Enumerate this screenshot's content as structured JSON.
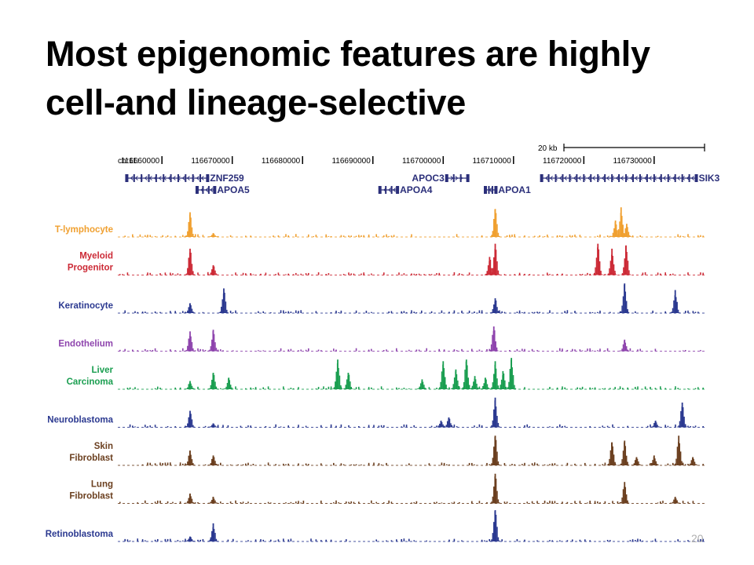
{
  "slide": {
    "title_line1": "Most epigenomic features are highly",
    "title_line2": "cell-and lineage-selective",
    "page_number": "20"
  },
  "chart_data": {
    "type": "area",
    "title": "",
    "chromosome_label": "chr11:",
    "region": {
      "start": 116653500,
      "end": 116737500
    },
    "ruler": {
      "ticks": [
        {
          "pos": 116660000,
          "label": "116660000"
        },
        {
          "pos": 116670000,
          "label": "116670000"
        },
        {
          "pos": 116680000,
          "label": "116680000"
        },
        {
          "pos": 116690000,
          "label": "116690000"
        },
        {
          "pos": 116700000,
          "label": "116700000"
        },
        {
          "pos": 116710000,
          "label": "116710000"
        },
        {
          "pos": 116720000,
          "label": "116720000"
        },
        {
          "pos": 116730000,
          "label": "116730000"
        }
      ],
      "scale_bar_label": "20 kb",
      "scale_bar_length_bp": 20000
    },
    "genes": [
      {
        "name": "ZNF259",
        "start": 116655000,
        "end": 116666500,
        "strand": "-",
        "row": 1,
        "label_side": "right"
      },
      {
        "name": "APOA5",
        "start": 116665000,
        "end": 116667500,
        "strand": "-",
        "row": 2,
        "label_side": "right"
      },
      {
        "name": "APOC3",
        "start": 116700500,
        "end": 116703500,
        "strand": "+",
        "row": 1,
        "label_side": "left"
      },
      {
        "name": "APOA4",
        "start": 116691000,
        "end": 116693500,
        "strand": "-",
        "row": 2,
        "label_side": "right"
      },
      {
        "name": "APOA1",
        "start": 116706000,
        "end": 116707500,
        "strand": "-",
        "row": 2,
        "label_side": "right"
      },
      {
        "name": "SIK3",
        "start": 116714000,
        "end": 116736000,
        "strand": "-",
        "row": 1,
        "label_side": "right"
      }
    ],
    "tracks": [
      {
        "name": "T-lymphocyte",
        "label_lines": [
          "T-lymphocyte"
        ],
        "color": "#f0a030",
        "peaks": [
          [
            116664000,
            0.75
          ],
          [
            116667300,
            0.12
          ],
          [
            116707400,
            0.85
          ],
          [
            116724500,
            0.5
          ],
          [
            116725300,
            0.9
          ],
          [
            116726100,
            0.4
          ]
        ]
      },
      {
        "name": "Myeloid Progenitor",
        "label_lines": [
          "Myeloid",
          "Progenitor"
        ],
        "color": "#cc2a36",
        "peaks": [
          [
            116664000,
            0.8
          ],
          [
            116667300,
            0.3
          ],
          [
            116706600,
            0.55
          ],
          [
            116707400,
            0.95
          ],
          [
            116722000,
            0.95
          ],
          [
            116724000,
            0.8
          ],
          [
            116726000,
            0.9
          ]
        ]
      },
      {
        "name": "Keratinocyte",
        "label_lines": [
          "Keratinocyte"
        ],
        "color": "#2b3990",
        "peaks": [
          [
            116664000,
            0.3
          ],
          [
            116668800,
            0.75
          ],
          [
            116707400,
            0.45
          ],
          [
            116725800,
            0.9
          ],
          [
            116733000,
            0.7
          ]
        ]
      },
      {
        "name": "Endothelium",
        "label_lines": [
          "Endothelium"
        ],
        "color": "#8e44ad",
        "peaks": [
          [
            116664000,
            0.6
          ],
          [
            116667300,
            0.65
          ],
          [
            116707200,
            0.75
          ],
          [
            116725800,
            0.35
          ]
        ]
      },
      {
        "name": "Liver Carcinoma",
        "label_lines": [
          "Liver",
          "Carcinoma"
        ],
        "color": "#1a9e50",
        "peaks": [
          [
            116664000,
            0.25
          ],
          [
            116667300,
            0.5
          ],
          [
            116669500,
            0.35
          ],
          [
            116685000,
            0.9
          ],
          [
            116686500,
            0.5
          ],
          [
            116697000,
            0.3
          ],
          [
            116700000,
            0.85
          ],
          [
            116701800,
            0.6
          ],
          [
            116703300,
            0.9
          ],
          [
            116704500,
            0.4
          ],
          [
            116706000,
            0.35
          ],
          [
            116707400,
            0.85
          ],
          [
            116708500,
            0.55
          ],
          [
            116709700,
            0.95
          ]
        ]
      },
      {
        "name": "Neuroblastoma",
        "label_lines": [
          "Neuroblastoma"
        ],
        "color": "#2b3990",
        "peaks": [
          [
            116664000,
            0.5
          ],
          [
            116667300,
            0.12
          ],
          [
            116699700,
            0.2
          ],
          [
            116700800,
            0.3
          ],
          [
            116707400,
            0.9
          ],
          [
            116730200,
            0.2
          ],
          [
            116734000,
            0.75
          ]
        ]
      },
      {
        "name": "Skin Fibroblast",
        "label_lines": [
          "Skin",
          "Fibroblast"
        ],
        "color": "#6b3f1f",
        "peaks": [
          [
            116664000,
            0.45
          ],
          [
            116667300,
            0.3
          ],
          [
            116707400,
            0.9
          ],
          [
            116724000,
            0.7
          ],
          [
            116725800,
            0.75
          ],
          [
            116727500,
            0.25
          ],
          [
            116730000,
            0.3
          ],
          [
            116733500,
            0.9
          ],
          [
            116735500,
            0.25
          ]
        ]
      },
      {
        "name": "Lung Fibroblast",
        "label_lines": [
          "Lung",
          "Fibroblast"
        ],
        "color": "#6b3f1f",
        "peaks": [
          [
            116664000,
            0.3
          ],
          [
            116667300,
            0.2
          ],
          [
            116707400,
            0.9
          ],
          [
            116725800,
            0.65
          ],
          [
            116733000,
            0.2
          ]
        ]
      },
      {
        "name": "Retinoblastoma",
        "label_lines": [
          "Retinoblastoma"
        ],
        "color": "#2b3990",
        "peaks": [
          [
            116664000,
            0.15
          ],
          [
            116667300,
            0.55
          ],
          [
            116707400,
            0.95
          ]
        ]
      }
    ]
  }
}
